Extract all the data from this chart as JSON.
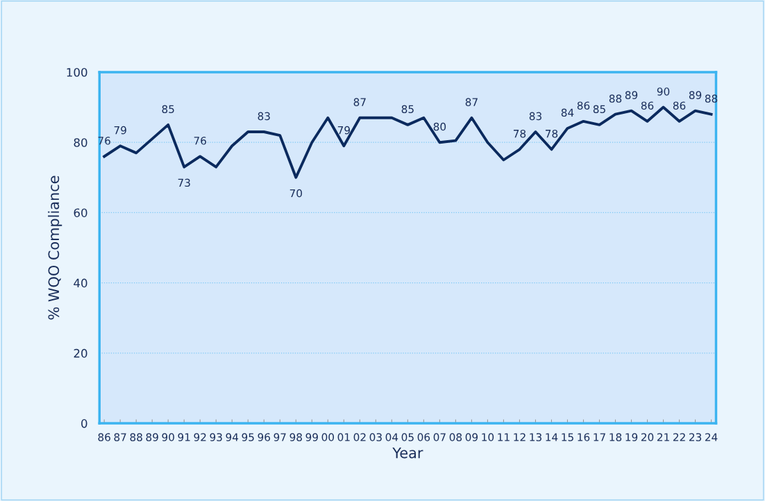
{
  "chart_data": {
    "type": "line",
    "xlabel": "Year",
    "ylabel": "% WQO Compliance",
    "categories": [
      "86",
      "87",
      "88",
      "89",
      "90",
      "91",
      "92",
      "93",
      "94",
      "95",
      "96",
      "97",
      "98",
      "99",
      "00",
      "01",
      "02",
      "03",
      "04",
      "05",
      "06",
      "07",
      "08",
      "09",
      "10",
      "11",
      "12",
      "13",
      "14",
      "15",
      "16",
      "17",
      "18",
      "19",
      "20",
      "21",
      "22",
      "23",
      "24"
    ],
    "series": [
      {
        "color": "#0b2a5e",
        "values": [
          76,
          79,
          77,
          81,
          85,
          73,
          76,
          73,
          79,
          83,
          83,
          82,
          70,
          80,
          87,
          79,
          87,
          87,
          87,
          85,
          87,
          80,
          80.5,
          87,
          80,
          75,
          78,
          83,
          78,
          84,
          86,
          85,
          88,
          89,
          86,
          90,
          86,
          89,
          88
        ],
        "value_labels": [
          "76",
          "79",
          null,
          null,
          "85",
          "73",
          "76",
          null,
          null,
          null,
          "83",
          null,
          "70",
          null,
          null,
          "79",
          "87",
          null,
          null,
          "85",
          null,
          "80",
          null,
          "87",
          null,
          null,
          "78",
          "83",
          "78",
          "84",
          "86",
          "85",
          "88",
          "89",
          "86",
          "90",
          "86",
          "89",
          "88"
        ]
      }
    ],
    "ylim": [
      0,
      100
    ],
    "yticks": [
      0,
      20,
      40,
      60,
      80,
      100
    ],
    "grid": "y",
    "legend": false,
    "marker": "none",
    "line_style": "solid"
  }
}
